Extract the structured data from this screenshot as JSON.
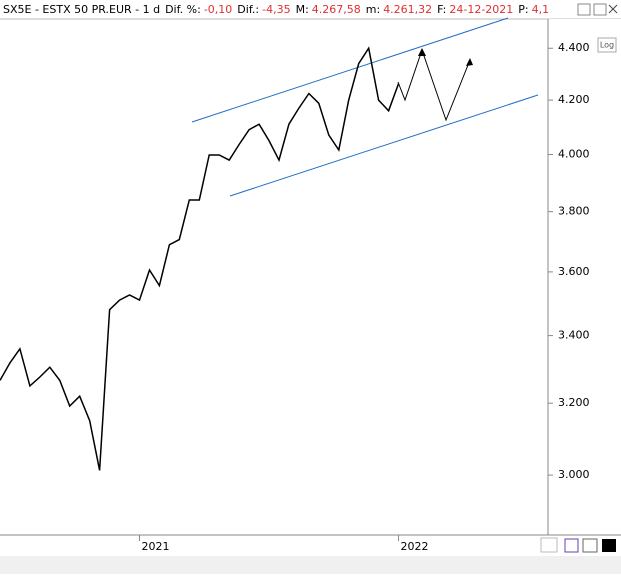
{
  "chart_data": {
    "type": "line",
    "title": "SX5E - ESTX 50 PR.EUR - 1 d",
    "info": [
      {
        "label": "Dif. %:",
        "value": "-0,10"
      },
      {
        "label": "Dif.:",
        "value": "-4,35"
      },
      {
        "label": "M:",
        "value": "4.267,58"
      },
      {
        "label": "m:",
        "value": "4.261,32"
      },
      {
        "label": "F:",
        "value": "24-12-2021"
      },
      {
        "label": "P:",
        "value": "4,1"
      }
    ],
    "log_button": "Log",
    "log_scale": true,
    "categories": [
      null,
      null,
      null,
      null,
      null,
      null,
      null,
      null,
      null,
      null,
      null,
      null,
      null,
      null,
      "2021",
      null,
      null,
      null,
      null,
      null,
      null,
      null,
      null,
      null,
      null,
      null,
      null,
      null,
      null,
      null,
      null,
      null,
      null,
      null,
      null,
      null,
      null,
      null,
      null,
      null,
      "2022",
      null,
      null,
      null,
      null,
      null,
      null,
      null,
      null,
      null,
      null,
      null,
      null,
      null,
      null
    ],
    "series": [
      {
        "name": "SX5E",
        "color": "#000000",
        "values": [
          3266,
          3318,
          3360,
          3250,
          3276,
          3305,
          3266,
          3192,
          3220,
          3150,
          3013,
          3480,
          3510,
          3526,
          3510,
          3606,
          3556,
          3689,
          3706,
          3840,
          3840,
          3998,
          3998,
          3980,
          4036,
          4090,
          4110,
          4050,
          3980,
          4110,
          4170,
          4225,
          4188,
          4070,
          4016,
          4200,
          4340,
          4400,
          4200,
          4160,
          4262,
          null,
          null,
          null,
          null,
          null,
          null,
          null,
          null,
          null,
          null,
          null,
          null,
          null,
          null
        ]
      }
    ],
    "ylim": [
      2843,
      4517
    ],
    "yticks": [
      {
        "value": 3000,
        "label": "3.000"
      },
      {
        "value": 3200,
        "label": "3.200"
      },
      {
        "value": 3400,
        "label": "3.400"
      },
      {
        "value": 3600,
        "label": "3.600"
      },
      {
        "value": 3800,
        "label": "3.800"
      },
      {
        "value": 4000,
        "label": "4.000"
      },
      {
        "value": 4200,
        "label": "4.200"
      },
      {
        "value": 4400,
        "label": "4.400"
      }
    ],
    "grid": false
  }
}
